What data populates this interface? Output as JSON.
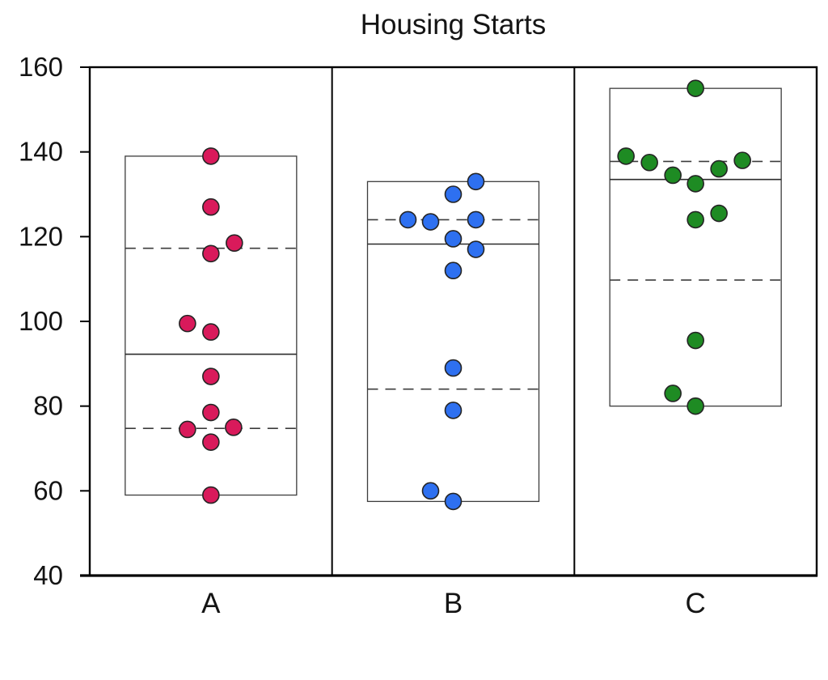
{
  "title": "Housing Starts",
  "chart_data": {
    "type": "box",
    "subtype": "strip-plot-with-range-box",
    "title": "Housing Starts",
    "xlabel": "",
    "ylabel": "",
    "ylim": [
      40,
      160
    ],
    "yticks": [
      40,
      60,
      80,
      100,
      120,
      140,
      160
    ],
    "categories": [
      "A",
      "B",
      "C"
    ],
    "grid": false,
    "legend_position": "none",
    "box_semantics": {
      "rectangle": "min to max of data",
      "solid_line": "median",
      "dashed_lines": "first and third quartiles"
    },
    "series": [
      {
        "name": "A",
        "color": "#d91a5b",
        "points": [
          {
            "v": 139,
            "dx": 0
          },
          {
            "v": 127,
            "dx": 0
          },
          {
            "v": 118.5,
            "dx": 29
          },
          {
            "v": 116,
            "dx": 0
          },
          {
            "v": 99.5,
            "dx": -29
          },
          {
            "v": 97.5,
            "dx": 0
          },
          {
            "v": 87,
            "dx": 0
          },
          {
            "v": 78.5,
            "dx": 0
          },
          {
            "v": 75,
            "dx": 28
          },
          {
            "v": 74.5,
            "dx": -29
          },
          {
            "v": 71.5,
            "dx": 0
          },
          {
            "v": 59,
            "dx": 0
          }
        ],
        "stats": {
          "min": 59,
          "q1": 74.75,
          "median": 92.25,
          "q3": 117.25,
          "max": 139
        }
      },
      {
        "name": "B",
        "color": "#2e70f0",
        "points": [
          {
            "v": 133,
            "dx": 28
          },
          {
            "v": 130,
            "dx": 0
          },
          {
            "v": 124,
            "dx": -56
          },
          {
            "v": 123.5,
            "dx": -28
          },
          {
            "v": 124,
            "dx": 28
          },
          {
            "v": 119.5,
            "dx": 0
          },
          {
            "v": 117,
            "dx": 28
          },
          {
            "v": 112,
            "dx": 0
          },
          {
            "v": 89,
            "dx": 0
          },
          {
            "v": 79,
            "dx": 0
          },
          {
            "v": 60,
            "dx": -28
          },
          {
            "v": 57.5,
            "dx": 0
          }
        ],
        "stats": {
          "min": 57.5,
          "q1": 84,
          "median": 118.25,
          "q3": 124,
          "max": 133
        }
      },
      {
        "name": "C",
        "color": "#1e8b23",
        "points": [
          {
            "v": 155,
            "dx": 0
          },
          {
            "v": 139,
            "dx": -86
          },
          {
            "v": 137.5,
            "dx": -57
          },
          {
            "v": 138,
            "dx": 58
          },
          {
            "v": 136,
            "dx": 29
          },
          {
            "v": 134.5,
            "dx": -28
          },
          {
            "v": 132.5,
            "dx": 0
          },
          {
            "v": 125.5,
            "dx": 29
          },
          {
            "v": 124,
            "dx": 0
          },
          {
            "v": 95.5,
            "dx": 0
          },
          {
            "v": 83,
            "dx": -28
          },
          {
            "v": 80,
            "dx": 0
          }
        ],
        "stats": {
          "min": 80,
          "q1": 109.75,
          "median": 133.5,
          "q3": 137.75,
          "max": 155
        }
      }
    ]
  },
  "colors": {
    "axis": "#000000",
    "box_stroke": "#3c3c3c",
    "median_stroke": "#2b2b2b",
    "point_outline": "#242424",
    "background": "#ffffff"
  }
}
